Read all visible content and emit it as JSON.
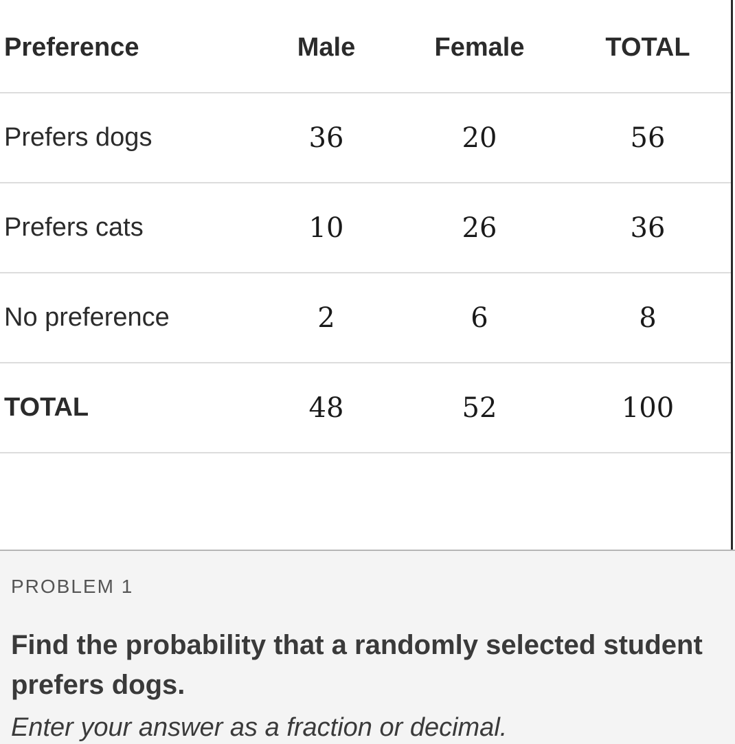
{
  "table": {
    "headers": [
      "Preference",
      "Male",
      "Female",
      "TOTAL"
    ],
    "rows": [
      {
        "label": "Prefers dogs",
        "male": "36",
        "female": "20",
        "total": "56"
      },
      {
        "label": "Prefers cats",
        "male": "10",
        "female": "26",
        "total": "36"
      },
      {
        "label": "No preference",
        "male": "2",
        "female": "6",
        "total": "8"
      },
      {
        "label": "TOTAL",
        "male": "48",
        "female": "52",
        "total": "100"
      }
    ]
  },
  "problem": {
    "label": "PROBLEM 1",
    "text": "Find the probability that a randomly selected student prefers dogs.",
    "instructions": "Enter your answer as a fraction or decimal."
  }
}
